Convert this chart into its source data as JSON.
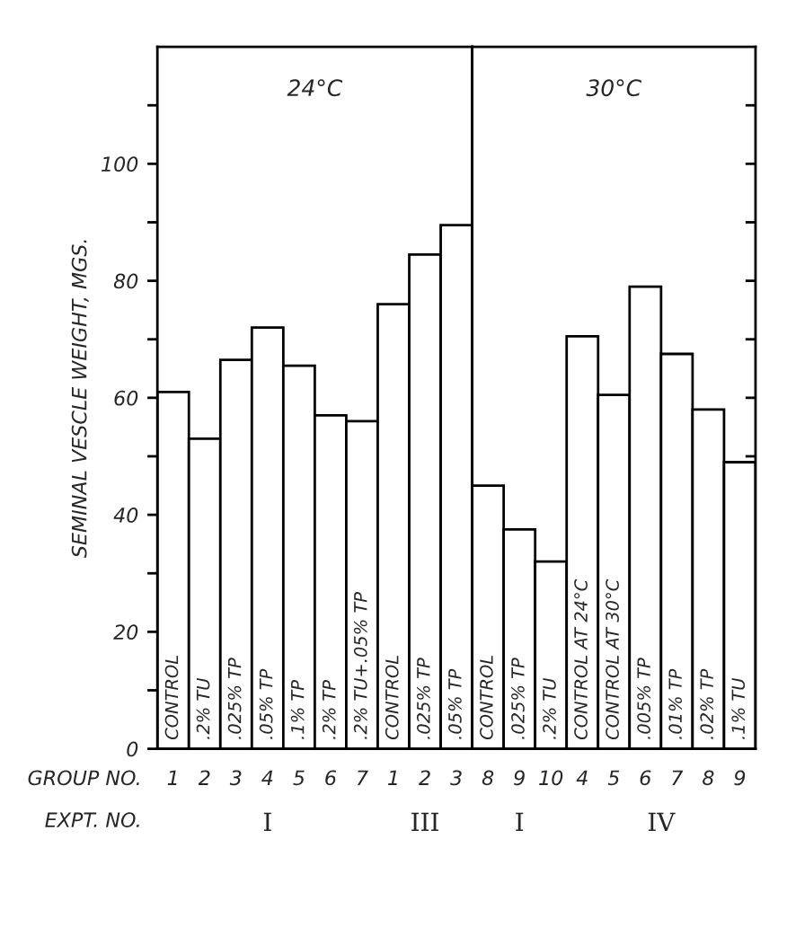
{
  "chart_data": [
    {
      "type": "bar",
      "title": "24°C",
      "ylabel": "SEMINAL VESCLE WEIGHT, MGS.",
      "categories": [
        "CONTROL",
        ".2% TU",
        ".025% TP",
        ".05% TP",
        ".1% TP",
        ".2% TP",
        ".2% TU+.05% TP",
        "CONTROL",
        ".025% TP",
        ".05% TP"
      ],
      "values": [
        61,
        53,
        66.5,
        72,
        65.5,
        57,
        56,
        76,
        84.5,
        89.5
      ],
      "color": "#ffffff",
      "ylim": [
        0,
        120
      ],
      "yticks": [
        0,
        {
          "value": 10,
          "label": null
        },
        20,
        {
          "value": 30,
          "label": null
        },
        40,
        {
          "value": 50,
          "label": null
        },
        60,
        {
          "value": 70,
          "label": null
        },
        80,
        {
          "value": 90,
          "label": null
        },
        100,
        {
          "value": 110,
          "label": null
        }
      ],
      "annotations": [
        "1",
        "2",
        "3",
        "4",
        "5",
        "6",
        "7",
        "1",
        "2",
        "3",
        "I",
        "III",
        "GROUP NO.",
        "EXPT. NO."
      ],
      "grid": false,
      "legend": false
    },
    {
      "type": "bar",
      "title": "30°C",
      "categories": [
        "CONTROL",
        ".025% TP",
        ".2% TU",
        "CONTROL AT 24°C",
        "CONTROL AT 30°C",
        ".005% TP",
        ".01% TP",
        ".02% TP",
        ".1% TU"
      ],
      "values": [
        45,
        37.5,
        32,
        70.5,
        60.5,
        79,
        67.5,
        58,
        49
      ],
      "color": "#ffffff",
      "ylim": [
        0,
        120
      ],
      "yticks": [
        0,
        {
          "value": 10,
          "label": null
        },
        20,
        {
          "value": 30,
          "label": null
        },
        40,
        {
          "value": 50,
          "label": null
        },
        60,
        {
          "value": 70,
          "label": null
        },
        80,
        {
          "value": 90,
          "label": null
        },
        100,
        {
          "value": 110,
          "label": null
        }
      ],
      "tick_labels": "x",
      "annotations": [
        "8",
        "9",
        "10",
        "4",
        "5",
        "6",
        "7",
        "8",
        "9",
        "I",
        "IV"
      ],
      "grid": false,
      "legend": false
    }
  ]
}
